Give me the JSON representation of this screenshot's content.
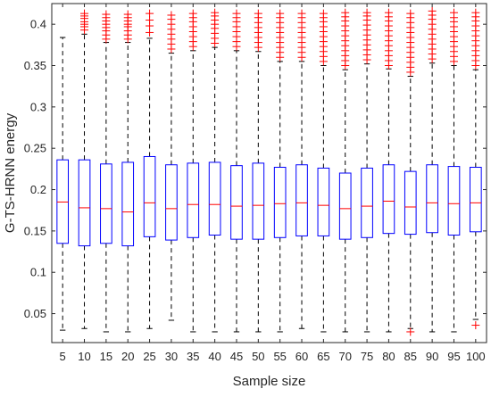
{
  "chart_data": {
    "type": "box",
    "xlabel": "Sample size",
    "ylabel": "G-TS-HRNN energy",
    "categories": [
      "5",
      "10",
      "15",
      "20",
      "25",
      "30",
      "35",
      "40",
      "45",
      "50",
      "55",
      "60",
      "65",
      "70",
      "75",
      "80",
      "85",
      "90",
      "95",
      "100"
    ],
    "yticks": [
      "0.05",
      "0.1",
      "0.15",
      "0.2",
      "0.25",
      "0.3",
      "0.35",
      "0.4"
    ],
    "ylim": [
      0.015,
      0.425
    ],
    "grid": false,
    "legend": "none",
    "colors": {
      "box": "#0000ff",
      "median": "#ff0000",
      "whisker": "#000000",
      "outlier": "#ff0000",
      "axis": "#262626"
    },
    "boxes": [
      {
        "category": "5",
        "q1": 0.135,
        "median": 0.185,
        "q3": 0.236,
        "whisker_low": 0.03,
        "whisker_high": 0.384,
        "outliers_low": [],
        "outliers_high": []
      },
      {
        "category": "10",
        "q1": 0.132,
        "median": 0.178,
        "q3": 0.236,
        "whisker_low": 0.032,
        "whisker_high": 0.388,
        "outliers_low": [],
        "outliers_high": [
          0.393,
          0.397,
          0.4,
          0.403,
          0.407,
          0.41,
          0.413
        ]
      },
      {
        "category": "15",
        "q1": 0.135,
        "median": 0.177,
        "q3": 0.231,
        "whisker_low": 0.028,
        "whisker_high": 0.378,
        "outliers_low": [],
        "outliers_high": [
          0.382,
          0.387,
          0.392,
          0.396,
          0.4,
          0.404,
          0.408,
          0.412
        ]
      },
      {
        "category": "20",
        "q1": 0.132,
        "median": 0.173,
        "q3": 0.233,
        "whisker_low": 0.028,
        "whisker_high": 0.378,
        "outliers_low": [],
        "outliers_high": [
          0.382,
          0.387,
          0.392,
          0.397,
          0.4,
          0.404,
          0.408,
          0.412
        ]
      },
      {
        "category": "25",
        "q1": 0.143,
        "median": 0.184,
        "q3": 0.24,
        "whisker_low": 0.032,
        "whisker_high": 0.383,
        "outliers_low": [],
        "outliers_high": [
          0.39,
          0.398,
          0.405,
          0.413
        ]
      },
      {
        "category": "30",
        "q1": 0.139,
        "median": 0.177,
        "q3": 0.23,
        "whisker_low": 0.042,
        "whisker_high": 0.365,
        "outliers_low": [],
        "outliers_high": [
          0.37,
          0.376,
          0.382,
          0.388,
          0.394,
          0.4,
          0.406,
          0.411
        ]
      },
      {
        "category": "35",
        "q1": 0.142,
        "median": 0.182,
        "q3": 0.232,
        "whisker_low": 0.028,
        "whisker_high": 0.368,
        "outliers_low": [],
        "outliers_high": [
          0.373,
          0.379,
          0.385,
          0.391,
          0.397,
          0.403,
          0.408,
          0.413
        ]
      },
      {
        "category": "40",
        "q1": 0.145,
        "median": 0.182,
        "q3": 0.233,
        "whisker_low": 0.028,
        "whisker_high": 0.372,
        "outliers_low": [],
        "outliers_high": [
          0.377,
          0.383,
          0.389,
          0.395,
          0.4,
          0.405,
          0.41,
          0.414
        ]
      },
      {
        "category": "45",
        "q1": 0.14,
        "median": 0.18,
        "q3": 0.229,
        "whisker_low": 0.028,
        "whisker_high": 0.368,
        "outliers_low": [],
        "outliers_high": [
          0.373,
          0.379,
          0.385,
          0.391,
          0.397,
          0.403,
          0.408,
          0.413
        ]
      },
      {
        "category": "50",
        "q1": 0.14,
        "median": 0.181,
        "q3": 0.232,
        "whisker_low": 0.028,
        "whisker_high": 0.367,
        "outliers_low": [],
        "outliers_high": [
          0.372,
          0.378,
          0.384,
          0.39,
          0.396,
          0.402,
          0.408,
          0.413
        ]
      },
      {
        "category": "55",
        "q1": 0.142,
        "median": 0.183,
        "q3": 0.227,
        "whisker_low": 0.028,
        "whisker_high": 0.355,
        "outliers_low": [],
        "outliers_high": [
          0.36,
          0.366,
          0.372,
          0.378,
          0.384,
          0.39,
          0.396,
          0.402,
          0.408,
          0.413
        ]
      },
      {
        "category": "60",
        "q1": 0.144,
        "median": 0.184,
        "q3": 0.23,
        "whisker_low": 0.032,
        "whisker_high": 0.355,
        "outliers_low": [],
        "outliers_high": [
          0.36,
          0.366,
          0.372,
          0.378,
          0.384,
          0.39,
          0.396,
          0.402,
          0.408,
          0.413
        ]
      },
      {
        "category": "65",
        "q1": 0.144,
        "median": 0.181,
        "q3": 0.226,
        "whisker_low": 0.028,
        "whisker_high": 0.35,
        "outliers_low": [],
        "outliers_high": [
          0.355,
          0.361,
          0.367,
          0.373,
          0.379,
          0.385,
          0.391,
          0.397,
          0.403,
          0.408,
          0.413
        ]
      },
      {
        "category": "70",
        "q1": 0.14,
        "median": 0.177,
        "q3": 0.22,
        "whisker_low": 0.028,
        "whisker_high": 0.345,
        "outliers_low": [],
        "outliers_high": [
          0.35,
          0.356,
          0.362,
          0.368,
          0.374,
          0.38,
          0.386,
          0.392,
          0.398,
          0.404,
          0.409,
          0.414
        ]
      },
      {
        "category": "75",
        "q1": 0.142,
        "median": 0.18,
        "q3": 0.226,
        "whisker_low": 0.028,
        "whisker_high": 0.352,
        "outliers_low": [],
        "outliers_high": [
          0.357,
          0.363,
          0.369,
          0.375,
          0.381,
          0.387,
          0.393,
          0.399,
          0.405,
          0.41,
          0.414
        ]
      },
      {
        "category": "80",
        "q1": 0.147,
        "median": 0.186,
        "q3": 0.23,
        "whisker_low": 0.028,
        "whisker_high": 0.346,
        "outliers_low": [],
        "outliers_high": [
          0.35,
          0.356,
          0.362,
          0.368,
          0.374,
          0.38,
          0.386,
          0.392,
          0.398,
          0.404,
          0.409,
          0.414
        ]
      },
      {
        "category": "85",
        "q1": 0.146,
        "median": 0.179,
        "q3": 0.222,
        "whisker_low": 0.032,
        "whisker_high": 0.337,
        "outliers_low": [
          0.028
        ],
        "outliers_high": [
          0.342,
          0.348,
          0.354,
          0.36,
          0.366,
          0.372,
          0.378,
          0.384,
          0.39,
          0.396,
          0.402,
          0.408,
          0.413
        ]
      },
      {
        "category": "90",
        "q1": 0.148,
        "median": 0.184,
        "q3": 0.23,
        "whisker_low": 0.028,
        "whisker_high": 0.353,
        "outliers_low": [],
        "outliers_high": [
          0.358,
          0.364,
          0.37,
          0.376,
          0.382,
          0.388,
          0.394,
          0.4,
          0.406,
          0.411,
          0.416
        ]
      },
      {
        "category": "95",
        "q1": 0.145,
        "median": 0.183,
        "q3": 0.228,
        "whisker_low": 0.028,
        "whisker_high": 0.35,
        "outliers_low": [],
        "outliers_high": [
          0.355,
          0.361,
          0.367,
          0.373,
          0.379,
          0.385,
          0.391,
          0.397,
          0.403,
          0.408,
          0.414
        ]
      },
      {
        "category": "100",
        "q1": 0.149,
        "median": 0.184,
        "q3": 0.227,
        "whisker_low": 0.043,
        "whisker_high": 0.345,
        "outliers_low": [
          0.036
        ],
        "outliers_high": [
          0.35,
          0.356,
          0.362,
          0.368,
          0.374,
          0.38,
          0.386,
          0.392,
          0.398,
          0.404,
          0.409,
          0.414
        ]
      }
    ]
  }
}
